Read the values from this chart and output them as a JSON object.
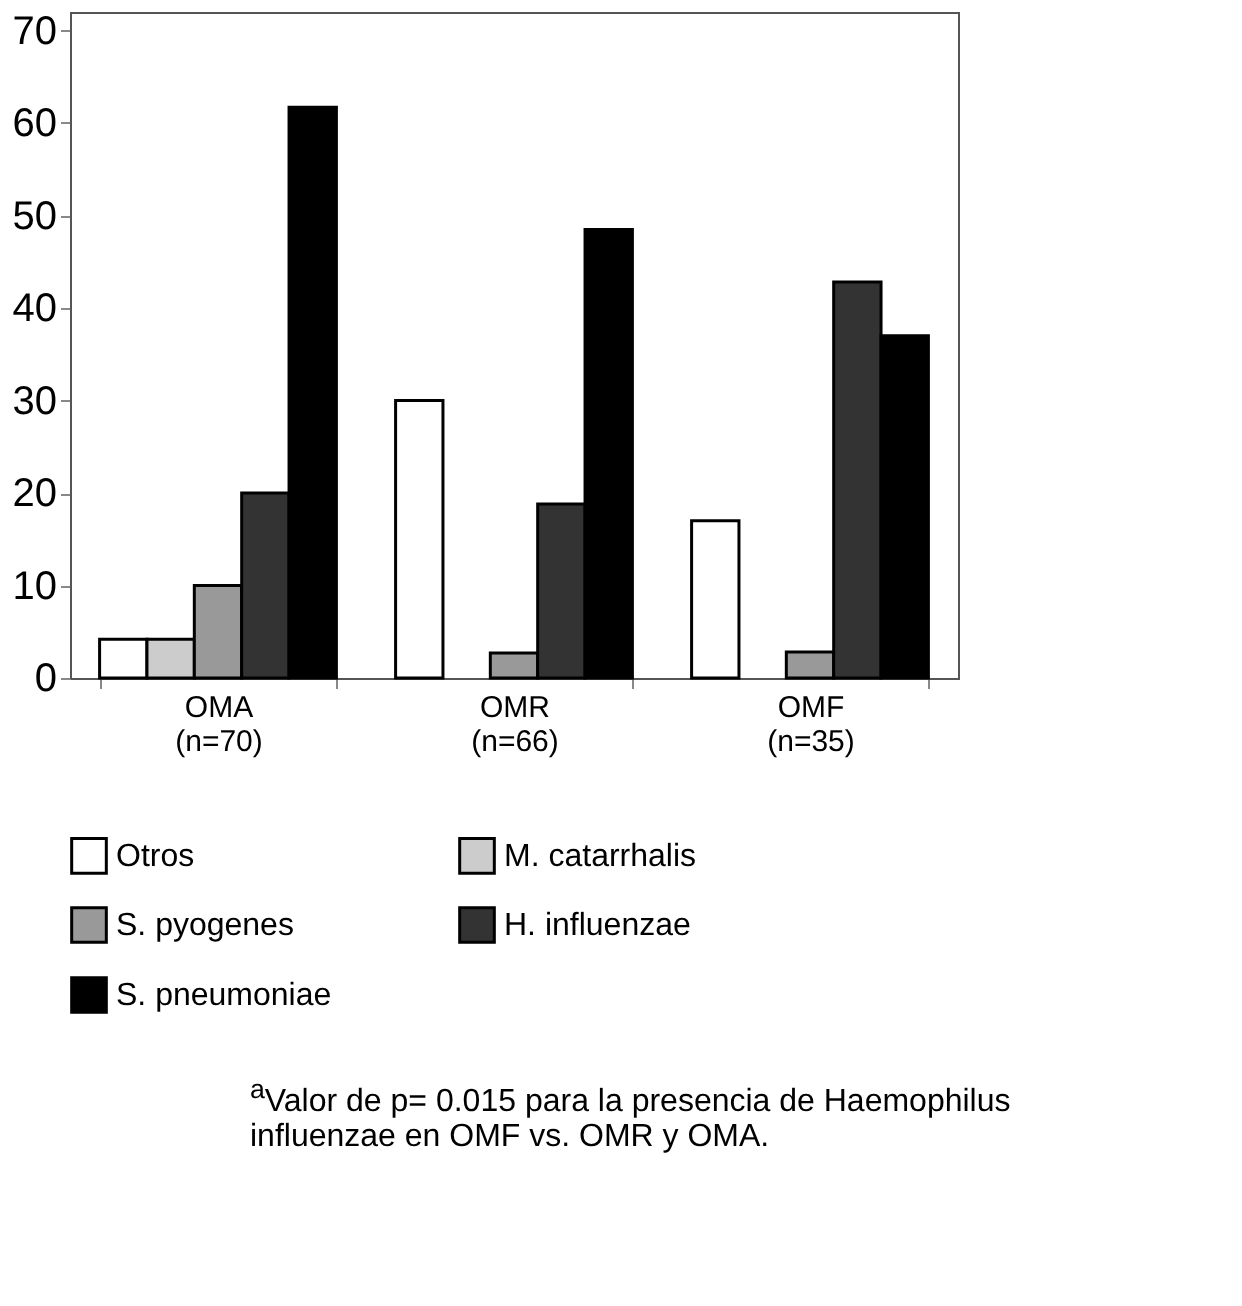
{
  "chart_data": {
    "type": "bar",
    "categories": [
      "OMA\n(n=70)",
      "OMR\n(n=66)",
      "OMF\n(n=35)"
    ],
    "series": [
      {
        "name": "Otros",
        "color": "#ffffff",
        "values": [
          4.2,
          30,
          17
        ]
      },
      {
        "name": "M. catarrhalis",
        "color": "#cccccc",
        "values": [
          4.2,
          null,
          null
        ]
      },
      {
        "name": "S. pyogenes",
        "color": "#999999",
        "values": [
          10,
          2.7,
          2.8
        ]
      },
      {
        "name": "H. influenzae",
        "color": "#333333",
        "values": [
          20,
          18.8,
          42.8
        ]
      },
      {
        "name": "S. pneumoniae",
        "color": "#000000",
        "values": [
          61.7,
          48.5,
          37
        ]
      }
    ],
    "ylim": [
      0,
      72
    ],
    "yticks": [
      0,
      10,
      20,
      30,
      40,
      50,
      60,
      70
    ],
    "grid": false,
    "legend": "bottom",
    "annotations": [
      "$^{a}$Valor de p= 0.015 para la presencia de Haemophilus influenzae en OMF vs. OMR y OMA."
    ]
  }
}
